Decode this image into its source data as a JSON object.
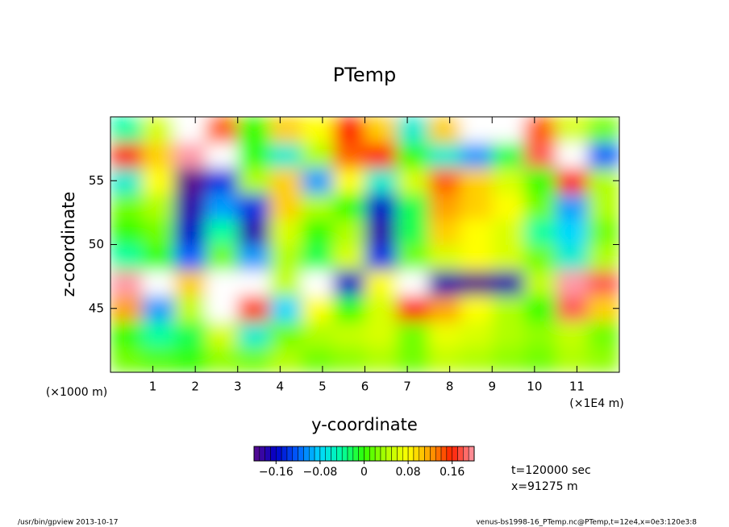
{
  "chart_data": {
    "type": "heatmap",
    "title": "PTemp",
    "x_label": "y-coordinate",
    "y_label": "z-coordinate",
    "y_unit": "(×1000 m)",
    "x_unit": "(×1E4 m)",
    "notes": [
      "t=120000 sec",
      "x=91275 m"
    ],
    "footer_left": "/usr/bin/gpview  2013-10-17",
    "footer_right": "venus-bs1998-16_PTemp.nc@PTemp,t=12e4,x=0e3:120e3:8",
    "xlim": [
      0,
      12
    ],
    "xticks": [
      1,
      2,
      3,
      4,
      5,
      6,
      7,
      8,
      9,
      10,
      11
    ],
    "ylim": [
      40,
      60
    ],
    "yticks": [
      45,
      50,
      55
    ],
    "x": [
      0.375,
      1.125,
      1.875,
      2.625,
      3.375,
      4.125,
      4.875,
      5.625,
      6.375,
      7.125,
      7.875,
      8.625,
      9.375,
      10.125,
      10.875,
      11.625
    ],
    "y": [
      41,
      43,
      45,
      47,
      49,
      51,
      53,
      55,
      57,
      59
    ],
    "z": [
      [
        0.02,
        0.01,
        0.0,
        0.03,
        0.02,
        0.04,
        0.02,
        0.03,
        0.04,
        0.02,
        0.05,
        0.04,
        0.03,
        0.02,
        0.04,
        0.03
      ],
      [
        0.0,
        -0.04,
        -0.02,
        0.06,
        -0.06,
        0.02,
        0.04,
        0.05,
        0.06,
        0.02,
        0.07,
        0.06,
        0.04,
        0.03,
        0.05,
        0.02
      ],
      [
        0.12,
        -0.1,
        0.05,
        0.22,
        0.15,
        -0.08,
        0.08,
        0.0,
        0.06,
        0.16,
        0.12,
        0.08,
        0.04,
        0.0,
        0.18,
        0.1
      ],
      [
        0.2,
        0.22,
        0.1,
        0.25,
        0.22,
        0.05,
        0.22,
        -0.16,
        0.08,
        0.22,
        -0.18,
        -0.2,
        -0.18,
        0.05,
        0.2,
        0.18
      ],
      [
        -0.04,
        0.0,
        -0.12,
        0.02,
        -0.1,
        0.04,
        -0.02,
        0.06,
        -0.14,
        0.02,
        0.06,
        0.08,
        0.06,
        0.02,
        -0.06,
        0.04
      ],
      [
        0.0,
        0.02,
        -0.16,
        -0.04,
        -0.18,
        0.06,
        0.0,
        0.04,
        -0.18,
        -0.02,
        0.1,
        0.08,
        0.06,
        -0.04,
        -0.08,
        0.02
      ],
      [
        0.02,
        0.04,
        -0.18,
        -0.1,
        -0.14,
        0.1,
        0.04,
        0.0,
        -0.16,
        -0.02,
        0.12,
        0.1,
        0.08,
        0.02,
        -0.1,
        0.04
      ],
      [
        -0.06,
        0.08,
        -0.2,
        -0.14,
        0.04,
        0.1,
        -0.1,
        0.08,
        -0.06,
        0.06,
        0.14,
        0.1,
        0.06,
        0.0,
        0.16,
        0.04
      ],
      [
        0.16,
        0.1,
        0.2,
        0.22,
        0.0,
        -0.06,
        0.04,
        0.14,
        0.16,
        0.0,
        -0.06,
        -0.1,
        -0.02,
        0.18,
        0.22,
        -0.12
      ],
      [
        -0.04,
        0.06,
        0.22,
        0.14,
        0.0,
        0.1,
        0.08,
        0.16,
        0.1,
        -0.06,
        0.1,
        0.22,
        0.24,
        0.14,
        0.06,
        0.02
      ]
    ],
    "colorbar_lim": [
      -0.2,
      0.2
    ],
    "colorbar_ticks": [
      {
        "value": -0.16,
        "label": "−0.16"
      },
      {
        "value": -0.08,
        "label": "−0.08"
      },
      0,
      0.08,
      0.16
    ],
    "colormap": [
      "#5a0a8c",
      "#0000c8",
      "#0060ff",
      "#00d8ff",
      "#00ffa0",
      "#30ff00",
      "#b0ff00",
      "#ffff00",
      "#ffa000",
      "#ff2000",
      "#ff9aa8"
    ],
    "out_of_range_color": "#ffffff"
  }
}
